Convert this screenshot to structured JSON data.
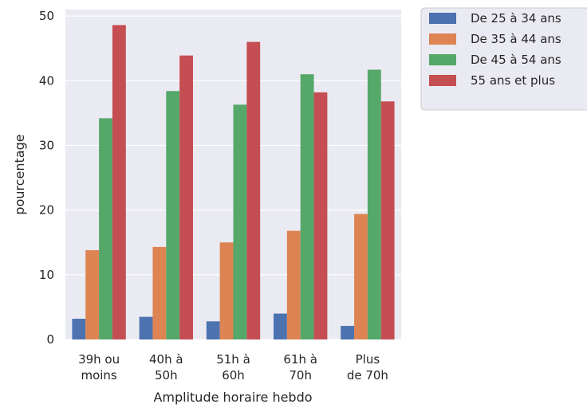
{
  "chart_data": {
    "type": "bar",
    "xlabel": "Amplitude horaire hebdo",
    "ylabel": "pourcentage",
    "ylim": [
      0,
      51
    ],
    "yticks": [
      0,
      10,
      20,
      30,
      40,
      50
    ],
    "grid": true,
    "legend_position": "outside-top-right",
    "categories": [
      [
        "39h ou",
        "moins"
      ],
      [
        "40h à",
        "50h"
      ],
      [
        "51h à",
        "60h"
      ],
      [
        "61h à",
        "70h"
      ],
      [
        "Plus",
        "de 70h"
      ]
    ],
    "series": [
      {
        "name": "De 25 à 34 ans",
        "color": "#4c72b0",
        "values": [
          3.2,
          3.5,
          2.8,
          4.0,
          2.1
        ]
      },
      {
        "name": "De 35 à 44 ans",
        "color": "#dd8452",
        "values": [
          13.8,
          14.3,
          15.0,
          16.8,
          19.4
        ]
      },
      {
        "name": "De 45 à 54 ans",
        "color": "#55a868",
        "values": [
          34.2,
          38.4,
          36.3,
          41.0,
          41.7
        ]
      },
      {
        "name": "55 ans et plus",
        "color": "#c44e52",
        "values": [
          48.6,
          43.9,
          46.0,
          38.2,
          36.8
        ]
      }
    ]
  }
}
